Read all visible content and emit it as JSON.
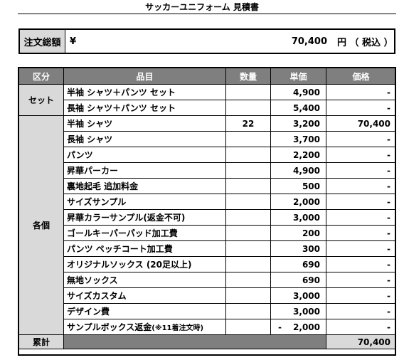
{
  "title": "サッカーユニフォーム 見積書",
  "total": {
    "label": "注文総額",
    "currency": "¥",
    "amount": "70,400",
    "unit": "円 （ 税込 ）"
  },
  "table": {
    "headers": {
      "category": "区分",
      "item": "品目",
      "qty": "数量",
      "unit_price": "単価",
      "price": "価格"
    },
    "set_label": "セット",
    "each_label": "各個",
    "set_rows": [
      {
        "item": "半袖 シャツ＋パンツ セット",
        "qty": "",
        "unit_price": "4,900",
        "price": "-"
      },
      {
        "item": "長袖 シャツ＋パンツ セット",
        "qty": "",
        "unit_price": "5,400",
        "price": "-"
      }
    ],
    "each_rows": [
      {
        "item": "半袖 シャツ",
        "qty": "22",
        "unit_price": "3,200",
        "price": "70,400"
      },
      {
        "item": "長袖 シャツ",
        "qty": "",
        "unit_price": "3,700",
        "price": "-"
      },
      {
        "item": "パンツ",
        "qty": "",
        "unit_price": "2,200",
        "price": "-"
      },
      {
        "item": "昇華パーカー",
        "qty": "",
        "unit_price": "4,900",
        "price": "-"
      },
      {
        "item": "裏地起毛 追加料金",
        "qty": "",
        "unit_price": "500",
        "price": "-"
      },
      {
        "item": "サイズサンプル",
        "qty": "",
        "unit_price": "2,000",
        "price": "-"
      },
      {
        "item": "昇華カラーサンプル(返金不可)",
        "qty": "",
        "unit_price": "3,000",
        "price": "-"
      },
      {
        "item": "ゴールキーパーパッド加工費",
        "qty": "",
        "unit_price": "200",
        "price": "-"
      },
      {
        "item": "パンツ ペッチコート加工費",
        "qty": "",
        "unit_price": "300",
        "price": "-"
      },
      {
        "item": "オリジナルソックス (20足以上)",
        "qty": "",
        "unit_price": "690",
        "price": "-"
      },
      {
        "item": "無地ソックス",
        "qty": "",
        "unit_price": "690",
        "price": "-"
      },
      {
        "item": "サイズカスタム",
        "qty": "",
        "unit_price": "3,000",
        "price": "-"
      },
      {
        "item": "デザイン費",
        "qty": "",
        "unit_price": "3,000",
        "price": "-"
      }
    ],
    "refund_row": {
      "item": "サンプルボックス返金",
      "item_note": "(※11着注文時)",
      "qty": "",
      "unit_sign": "-",
      "unit_price": "2,000",
      "price": "-"
    },
    "sum_label": "累計",
    "sum_value": "70,400"
  }
}
